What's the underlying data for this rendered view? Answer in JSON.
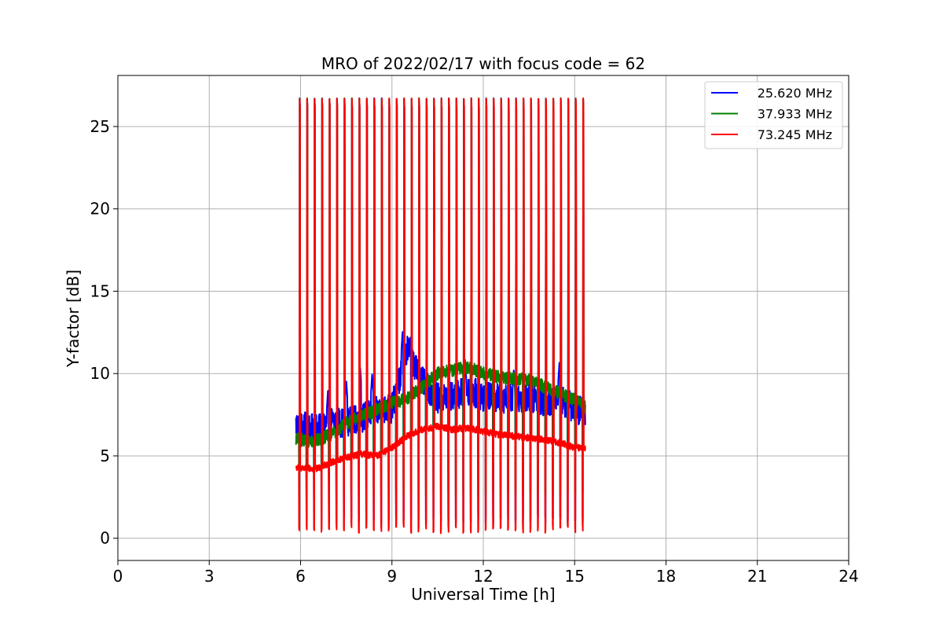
{
  "chart_data": {
    "type": "line",
    "title": "MRO of 2022/02/17 with focus code = 62",
    "xlabel": "Universal Time [h]",
    "ylabel": "Y-factor [dB]",
    "xlim": [
      0,
      24
    ],
    "ylim": [
      -1.35,
      28.1
    ],
    "xticks": [
      0,
      3,
      6,
      9,
      12,
      15,
      18,
      21,
      24
    ],
    "yticks": [
      0,
      5,
      10,
      15,
      20,
      25
    ],
    "grid": true,
    "legend": "top-right",
    "time_range": [
      5.85,
      15.35
    ],
    "calibration_pulses": {
      "count": 39,
      "start": 5.97,
      "end": 15.28,
      "peak_dB": 26.7,
      "min_dB": 0.1
    },
    "series": [
      {
        "name": "25.620 MHz",
        "color": "#0000ff",
        "baseline": [
          [
            5.85,
            6.9
          ],
          [
            6.5,
            6.6
          ],
          [
            7.0,
            7.1
          ],
          [
            7.5,
            7.0
          ],
          [
            8.0,
            7.3
          ],
          [
            8.5,
            7.7
          ],
          [
            9.0,
            7.9
          ],
          [
            9.5,
            11.5
          ],
          [
            10.0,
            9.5
          ],
          [
            10.5,
            8.5
          ],
          [
            11.0,
            8.6
          ],
          [
            11.5,
            9.0
          ],
          [
            12.0,
            8.6
          ],
          [
            12.5,
            8.5
          ],
          [
            13.0,
            8.5
          ],
          [
            13.5,
            8.6
          ],
          [
            14.0,
            8.3
          ],
          [
            14.5,
            8.4
          ],
          [
            15.0,
            7.9
          ],
          [
            15.35,
            7.6
          ]
        ],
        "noise": 0.9,
        "spikes": [
          [
            6.9,
            9.0
          ],
          [
            7.5,
            9.6
          ],
          [
            7.95,
            10.6
          ],
          [
            8.35,
            10.0
          ],
          [
            9.35,
            12.6
          ],
          [
            9.6,
            12.2
          ],
          [
            11.4,
            10.9
          ],
          [
            13.0,
            10.2
          ],
          [
            14.5,
            10.7
          ]
        ],
        "pulse_min": 0.9
      },
      {
        "name": "37.933 MHz",
        "color": "#008000",
        "baseline": [
          [
            5.85,
            6.0
          ],
          [
            6.5,
            5.9
          ],
          [
            7.0,
            6.3
          ],
          [
            7.5,
            7.0
          ],
          [
            8.0,
            7.4
          ],
          [
            8.5,
            7.8
          ],
          [
            9.0,
            8.2
          ],
          [
            9.5,
            8.5
          ],
          [
            10.0,
            9.2
          ],
          [
            10.5,
            10.0
          ],
          [
            11.0,
            10.2
          ],
          [
            11.5,
            10.4
          ],
          [
            12.0,
            10.0
          ],
          [
            12.5,
            9.8
          ],
          [
            13.0,
            9.7
          ],
          [
            13.5,
            9.6
          ],
          [
            14.0,
            9.2
          ],
          [
            14.5,
            8.8
          ],
          [
            15.0,
            8.4
          ],
          [
            15.35,
            8.0
          ]
        ],
        "noise": 0.4,
        "spikes": [],
        "pulse_min": 2.5
      },
      {
        "name": "73.245 MHz",
        "color": "#ff0000",
        "baseline": [
          [
            5.85,
            4.3
          ],
          [
            6.5,
            4.2
          ],
          [
            7.0,
            4.6
          ],
          [
            7.5,
            4.9
          ],
          [
            8.0,
            5.1
          ],
          [
            8.5,
            5.0
          ],
          [
            9.0,
            5.5
          ],
          [
            9.5,
            6.2
          ],
          [
            10.0,
            6.6
          ],
          [
            10.5,
            6.8
          ],
          [
            11.0,
            6.6
          ],
          [
            11.5,
            6.7
          ],
          [
            12.0,
            6.5
          ],
          [
            12.5,
            6.3
          ],
          [
            13.0,
            6.2
          ],
          [
            13.5,
            6.1
          ],
          [
            14.0,
            6.0
          ],
          [
            14.5,
            5.8
          ],
          [
            15.0,
            5.5
          ],
          [
            15.35,
            5.5
          ]
        ],
        "noise": 0.2,
        "spikes": [],
        "pulse_min": 0.3
      }
    ]
  }
}
